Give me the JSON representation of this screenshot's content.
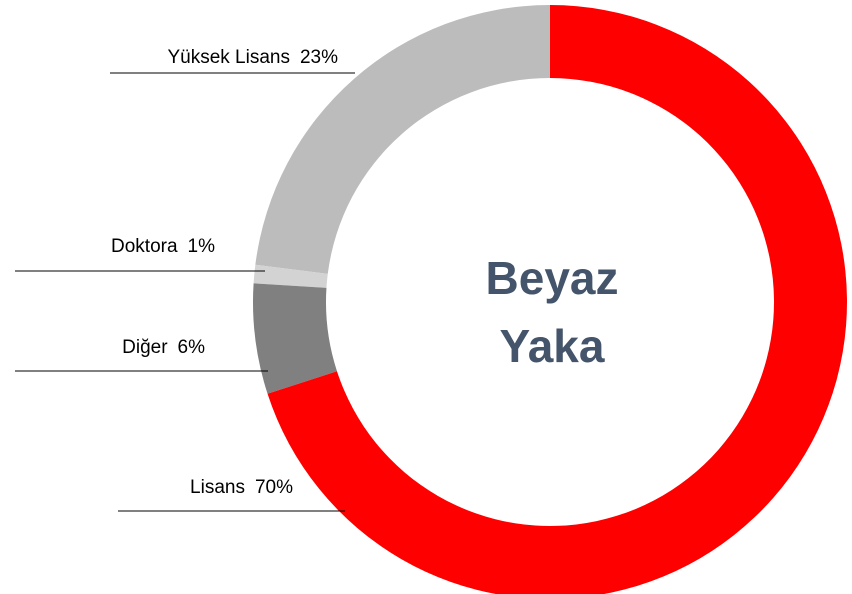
{
  "chart_data": {
    "type": "donut",
    "categories": [
      "Lisans",
      "Diğer",
      "Doktora",
      "Yüksek Lisans"
    ],
    "values": [
      70,
      6,
      1,
      23
    ],
    "value_labels": [
      "70%",
      "6%",
      "1%",
      "23%"
    ],
    "colors": [
      "#ff0000",
      "#808080",
      "#d3d3d3",
      "#bcbcbc"
    ],
    "center_label": [
      "Beyaz",
      "Yaka"
    ]
  }
}
